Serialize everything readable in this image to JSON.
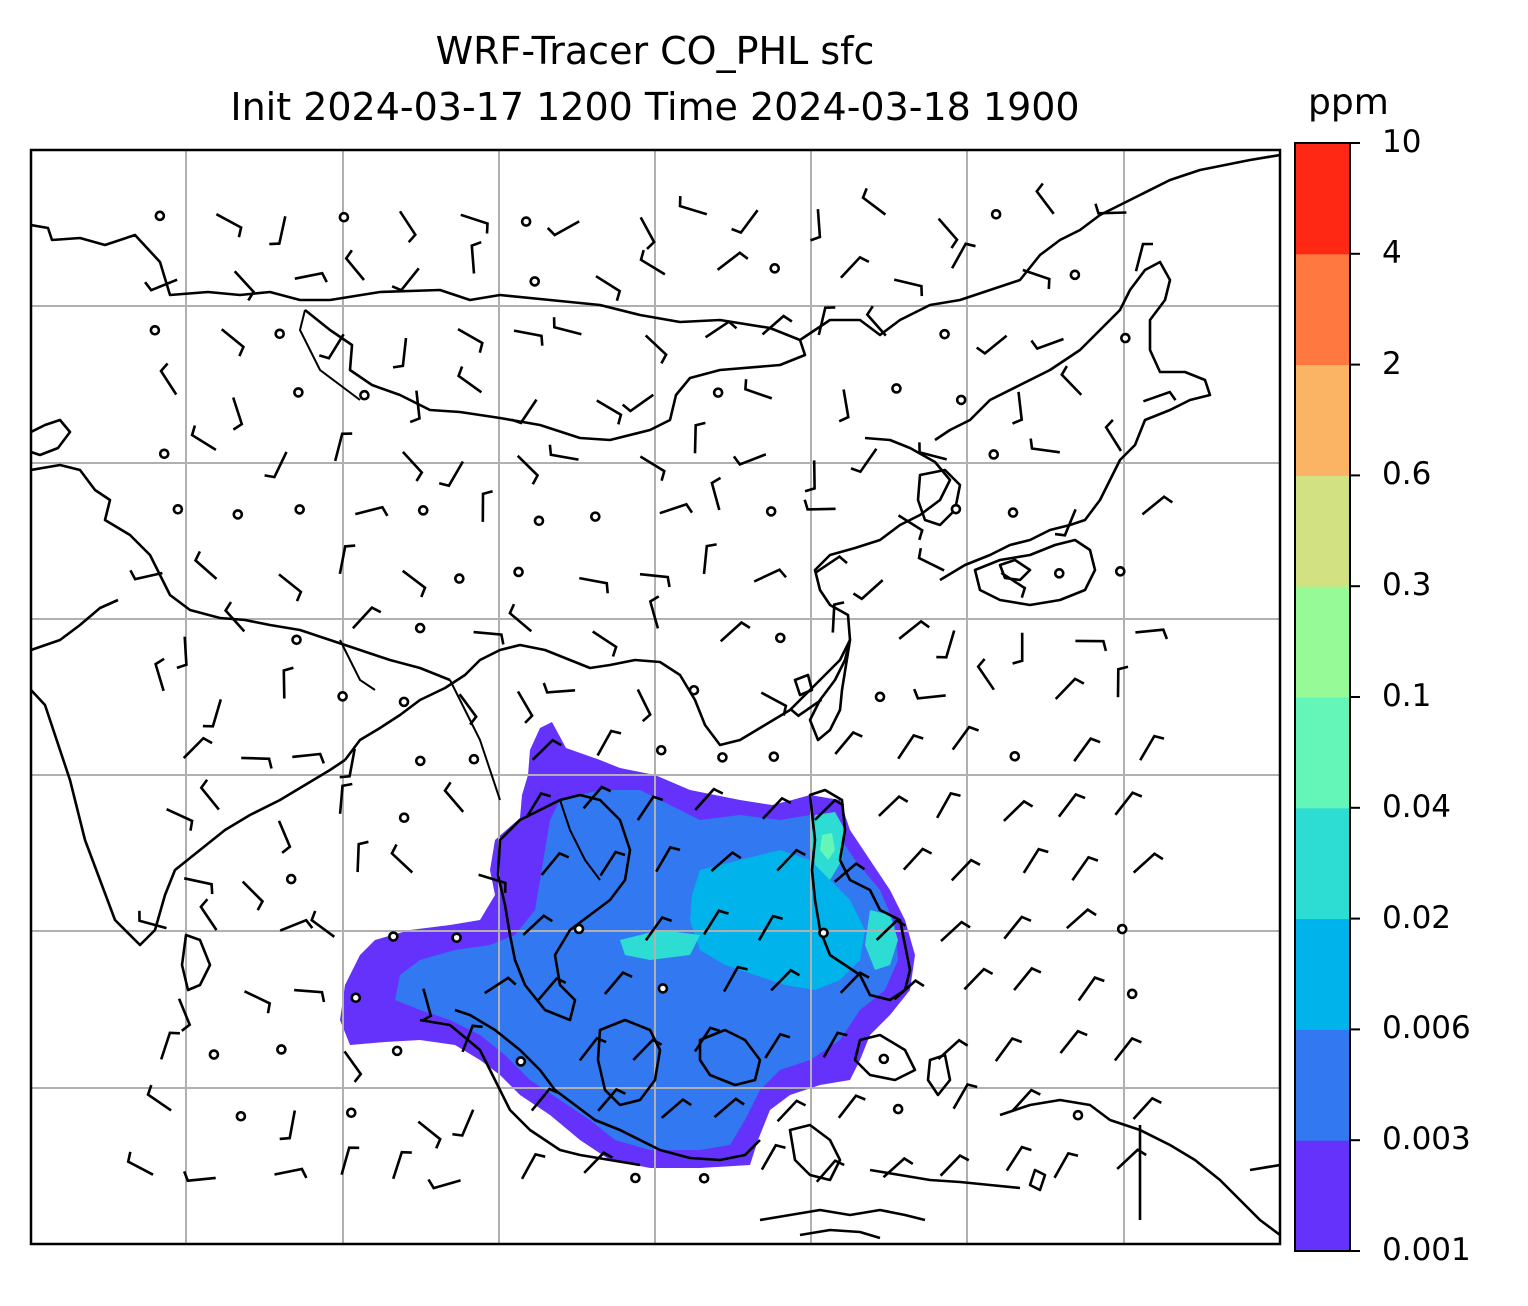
{
  "title_line1": "WRF-Tracer CO_PHL sfc",
  "title_line2": "Init 2024-03-17 1200 Time 2024-03-18 1900",
  "colorbar": {
    "unit": "ppm",
    "levels": [
      "0.001",
      "0.003",
      "0.006",
      "0.02",
      "0.04",
      "0.1",
      "0.3",
      "0.6",
      "2",
      "4",
      "10"
    ],
    "colors": [
      "#6432fa",
      "#3278f0",
      "#00b4eb",
      "#2ddcd2",
      "#64f5b9",
      "#96fa96",
      "#d2e182",
      "#fab464",
      "#ff7840",
      "#ff2814"
    ]
  },
  "map": {
    "field": "CO_PHL tracer concentration (plume over South China Sea / Indochina / Philippines)",
    "overlays": [
      "coastlines",
      "country-borders",
      "lat-lon-gridlines",
      "wind-barbs"
    ]
  }
}
